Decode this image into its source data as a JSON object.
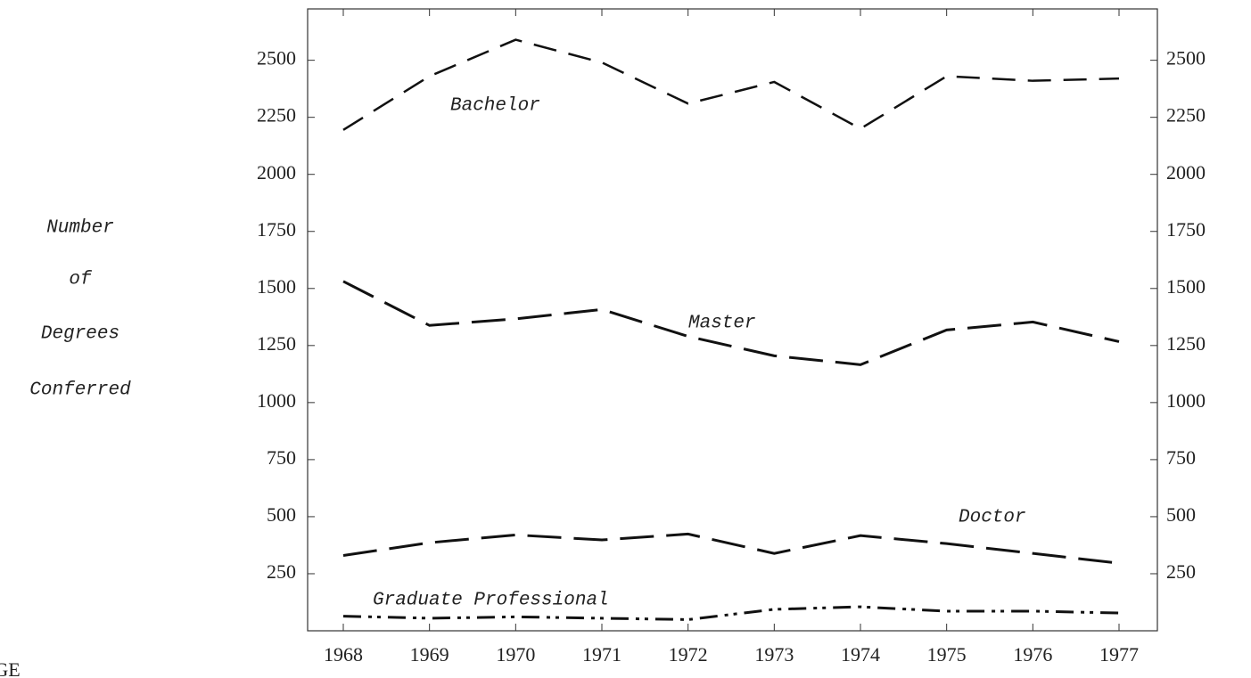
{
  "chart_data": {
    "type": "line",
    "ylabel": [
      "Number",
      "of",
      "Degrees",
      "Conferred"
    ],
    "corner_text": "IGE",
    "categories": [
      "1968",
      "1969",
      "1970",
      "1971",
      "1972",
      "1973",
      "1974",
      "1975",
      "1976",
      "1977"
    ],
    "series": [
      {
        "name": "Bachelor",
        "color": "#111111",
        "dash": "dashed",
        "values": [
          2195,
          2430,
          2590,
          2490,
          2310,
          2405,
          2200,
          2430,
          2410,
          2420
        ]
      },
      {
        "name": "Master",
        "color": "#111111",
        "dash": "long-dash",
        "values": [
          1531,
          1338,
          1367,
          1408,
          1290,
          1205,
          1166,
          1318,
          1353,
          1267
        ]
      },
      {
        "name": "Doctor",
        "color": "#111111",
        "dash": "long-dash",
        "values": [
          330,
          386,
          420,
          398,
          424,
          339,
          417,
          382,
          339,
          296
        ]
      },
      {
        "name": "Graduate Professional",
        "color": "#111111",
        "dash": "dash-dot",
        "values": [
          64,
          55,
          61,
          55,
          49,
          94,
          105,
          86,
          86,
          78
        ]
      }
    ],
    "ylim": [
      0,
      2725
    ],
    "yticks": [
      250,
      500,
      750,
      1000,
      1250,
      1500,
      1750,
      2000,
      2250,
      2500
    ],
    "y2lim": [
      0,
      2725
    ],
    "y2ticks": [
      250,
      500,
      750,
      1000,
      1250,
      1500,
      1750,
      2000,
      2250,
      2500
    ],
    "grid": false
  }
}
